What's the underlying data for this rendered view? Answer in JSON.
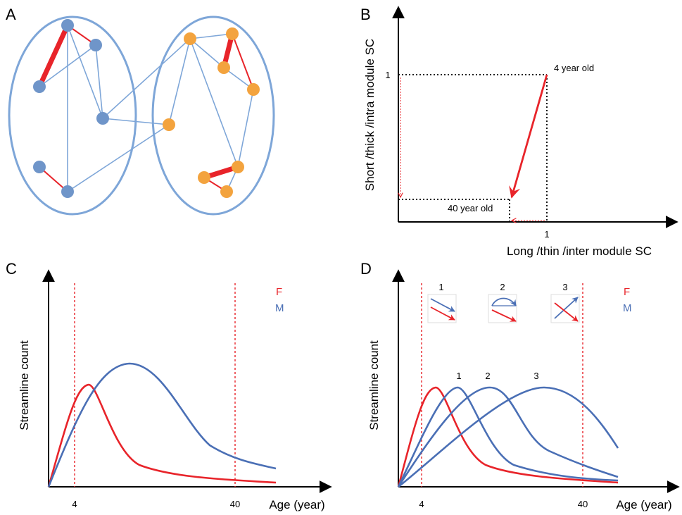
{
  "panels": {
    "a": {
      "label": "A"
    },
    "b": {
      "label": "B",
      "ylabel": "Short /thick /intra module SC",
      "xlabel": "Long /thin /inter module SC",
      "ytick": "1",
      "xtick": "1",
      "start_note": "4 year old",
      "end_note": "40 year old"
    },
    "c": {
      "label": "C",
      "ylabel": "Streamline count",
      "xlabel": "Age (year)",
      "ticks": [
        "4",
        "40"
      ],
      "legend": [
        "F",
        "M"
      ]
    },
    "d": {
      "label": "D",
      "ylabel": "Streamline count",
      "xlabel": "Age (year)",
      "ticks": [
        "4",
        "40"
      ],
      "legend": [
        "F",
        "M"
      ],
      "curve_labels": [
        "1",
        "2",
        "3"
      ],
      "inset_labels": [
        "1",
        "2",
        "3"
      ]
    }
  },
  "colors": {
    "female": "#e8242a",
    "male": "#4a6fb5",
    "module_outline": "#7ea6d8",
    "blue_node": "#6f95c9",
    "orange_node": "#f3a33e",
    "edge": "#7ea6d8"
  },
  "network": {
    "modules": [
      "blue",
      "orange"
    ],
    "blue_nodes": 6,
    "orange_nodes": 8,
    "thick_edges": [
      "blue",
      "orange",
      "orange"
    ]
  },
  "chart_data": [
    {
      "type": "line",
      "panel": "B",
      "xlabel": "Long /thin /inter module SC",
      "ylabel": "Short /thick /intra module SC",
      "points": [
        {
          "name": "4 year old",
          "x": 1,
          "y": 1
        },
        {
          "name": "40 year old",
          "x": 0.73,
          "y": 0.15
        }
      ]
    },
    {
      "type": "line",
      "panel": "C",
      "xlabel": "Age (year)",
      "ylabel": "Streamline count",
      "reference_lines_x": [
        4,
        40
      ],
      "series": [
        {
          "name": "F",
          "peak_age": 9
        },
        {
          "name": "M",
          "peak_age": 18
        }
      ]
    },
    {
      "type": "line",
      "panel": "D",
      "xlabel": "Age (year)",
      "ylabel": "Streamline count",
      "reference_lines_x": [
        4,
        40
      ],
      "series": [
        {
          "name": "F"
        },
        {
          "name": "1"
        },
        {
          "name": "2"
        },
        {
          "name": "3"
        }
      ]
    }
  ]
}
